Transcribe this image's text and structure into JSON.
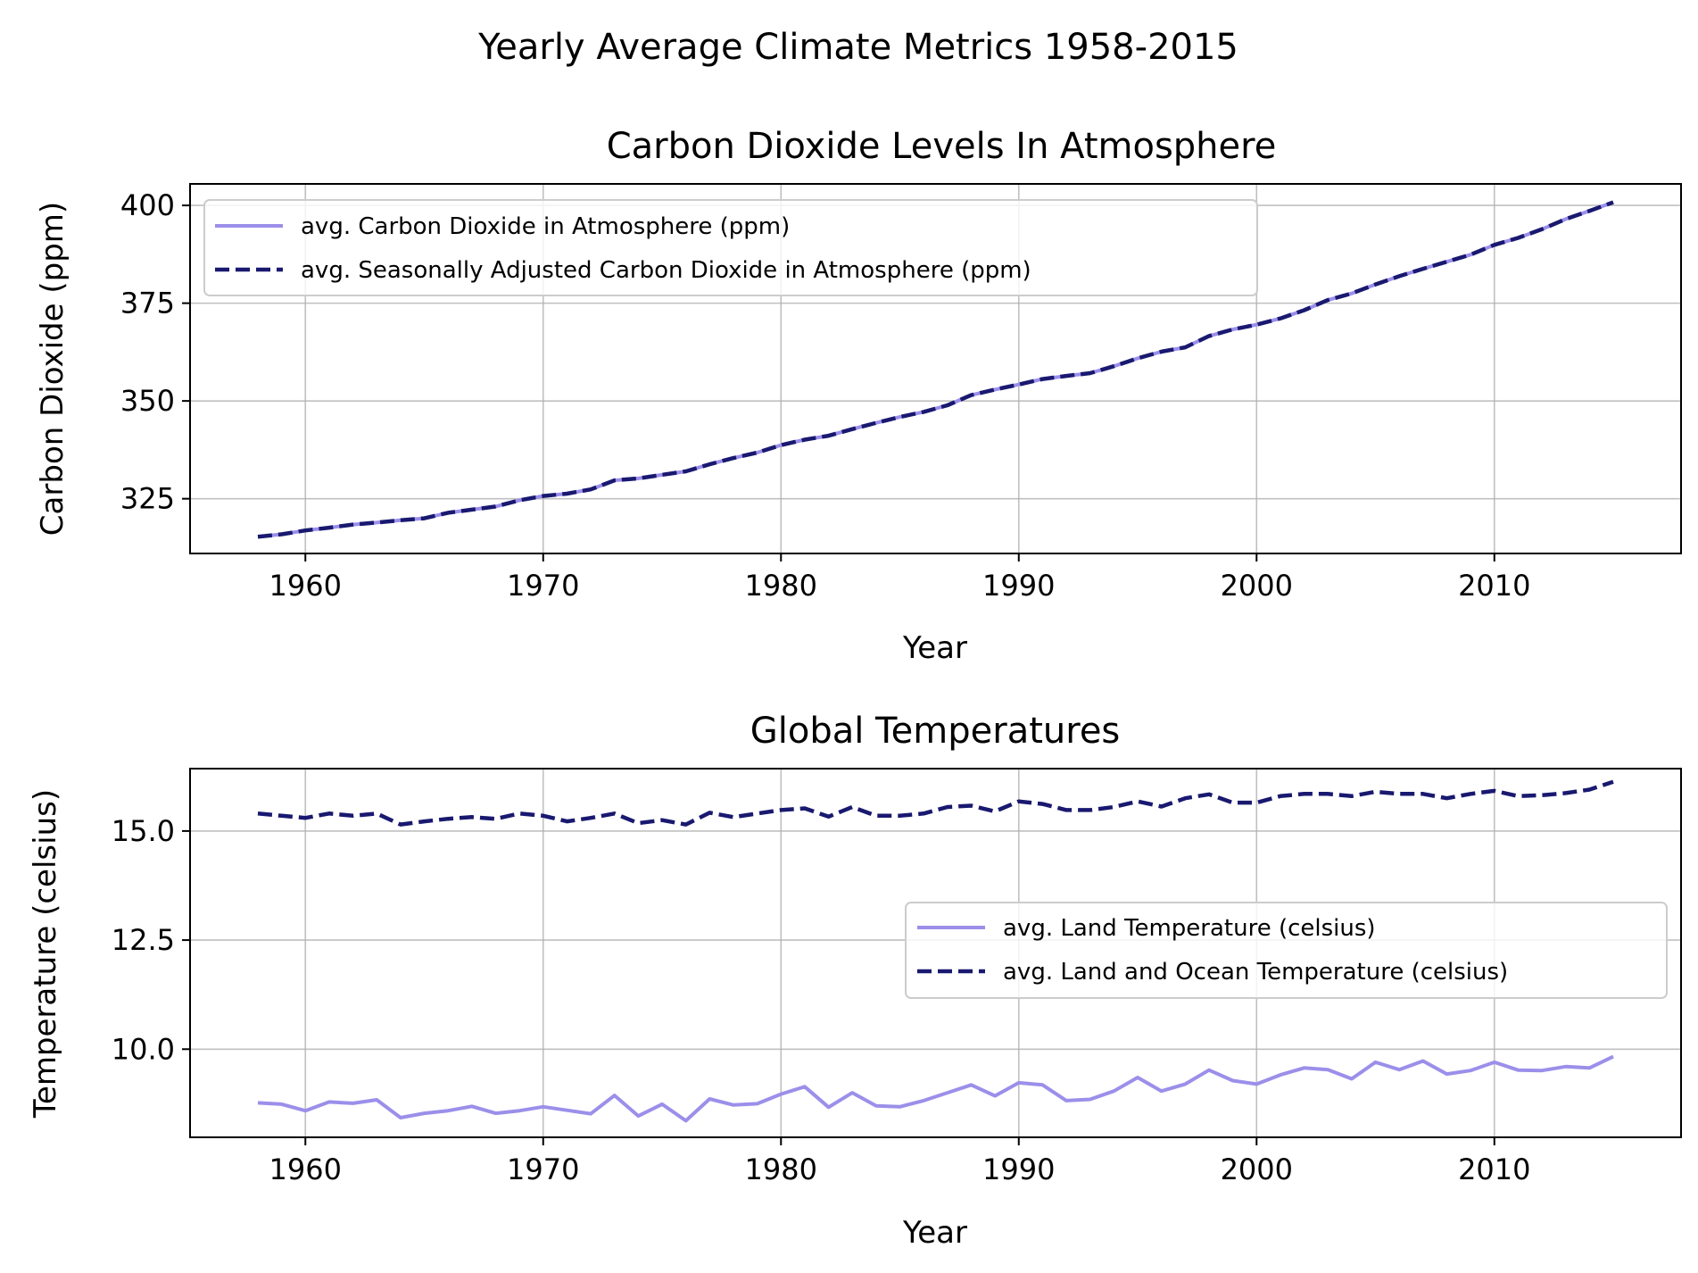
{
  "figure": {
    "suptitle": "Yearly Average Climate Metrics 1958-2015"
  },
  "colors": {
    "light": "#9b8fea",
    "dark": "#191970"
  },
  "chart_data": [
    {
      "type": "line",
      "title": "Carbon Dioxide Levels In Atmosphere",
      "xlabel": "Year",
      "ylabel": "Carbon Dioxide (ppm)",
      "xlim": [
        1955.15,
        2017.85
      ],
      "ylim": [
        311,
        405.5
      ],
      "xticks": [
        1960,
        1970,
        1980,
        1990,
        2000,
        2010
      ],
      "yticks": [
        325,
        350,
        375,
        400
      ],
      "ytick_labels": [
        "325",
        "350",
        "375",
        "400"
      ],
      "grid": true,
      "legend_position": "upper left",
      "x": [
        1958,
        1959,
        1960,
        1961,
        1962,
        1963,
        1964,
        1965,
        1966,
        1967,
        1968,
        1969,
        1970,
        1971,
        1972,
        1973,
        1974,
        1975,
        1976,
        1977,
        1978,
        1979,
        1980,
        1981,
        1982,
        1983,
        1984,
        1985,
        1986,
        1987,
        1988,
        1989,
        1990,
        1991,
        1992,
        1993,
        1994,
        1995,
        1996,
        1997,
        1998,
        1999,
        2000,
        2001,
        2002,
        2003,
        2004,
        2005,
        2006,
        2007,
        2008,
        2009,
        2010,
        2011,
        2012,
        2013,
        2014,
        2015
      ],
      "series": [
        {
          "name": "avg. Carbon Dioxide in Atmosphere (ppm)",
          "style": "solid",
          "color": "#9b8fea",
          "values": [
            315.3,
            315.9,
            316.9,
            317.6,
            318.4,
            318.9,
            319.5,
            320.0,
            321.4,
            322.2,
            323.0,
            324.6,
            325.7,
            326.3,
            327.4,
            329.7,
            330.2,
            331.1,
            332.0,
            333.8,
            335.4,
            336.8,
            338.7,
            340.1,
            341.1,
            342.8,
            344.4,
            345.9,
            347.2,
            348.9,
            351.5,
            352.9,
            354.2,
            355.6,
            356.4,
            357.1,
            358.9,
            360.9,
            362.6,
            363.7,
            366.6,
            368.3,
            369.5,
            371.1,
            373.2,
            375.8,
            377.5,
            379.8,
            381.9,
            383.8,
            385.6,
            387.4,
            389.9,
            391.7,
            393.9,
            396.5,
            398.6,
            400.8
          ]
        },
        {
          "name": "avg. Seasonally Adjusted Carbon Dioxide in Atmosphere (ppm)",
          "style": "dashed",
          "color": "#191970",
          "values": [
            315.3,
            315.9,
            316.9,
            317.6,
            318.4,
            318.9,
            319.5,
            320.0,
            321.4,
            322.2,
            323.0,
            324.6,
            325.7,
            326.3,
            327.4,
            329.7,
            330.2,
            331.1,
            332.0,
            333.8,
            335.4,
            336.8,
            338.7,
            340.1,
            341.1,
            342.8,
            344.4,
            345.9,
            347.2,
            348.9,
            351.5,
            352.9,
            354.2,
            355.6,
            356.4,
            357.1,
            358.9,
            360.9,
            362.6,
            363.7,
            366.6,
            368.3,
            369.5,
            371.1,
            373.2,
            375.8,
            377.5,
            379.8,
            381.9,
            383.8,
            385.6,
            387.4,
            389.9,
            391.7,
            393.9,
            396.5,
            398.6,
            400.8
          ]
        }
      ]
    },
    {
      "type": "line",
      "title": "Global Temperatures",
      "xlabel": "Year",
      "ylabel": "Temperature (celsius)",
      "xlim": [
        1955.15,
        2017.85
      ],
      "ylim": [
        7.98,
        16.43
      ],
      "xticks": [
        1960,
        1970,
        1980,
        1990,
        2000,
        2010
      ],
      "yticks": [
        10.0,
        12.5,
        15.0
      ],
      "ytick_labels": [
        "10.0",
        "12.5",
        "15.0"
      ],
      "grid": true,
      "legend_position": "center right",
      "x": [
        1958,
        1959,
        1960,
        1961,
        1962,
        1963,
        1964,
        1965,
        1966,
        1967,
        1968,
        1969,
        1970,
        1971,
        1972,
        1973,
        1974,
        1975,
        1976,
        1977,
        1978,
        1979,
        1980,
        1981,
        1982,
        1983,
        1984,
        1985,
        1986,
        1987,
        1988,
        1989,
        1990,
        1991,
        1992,
        1993,
        1994,
        1995,
        1996,
        1997,
        1998,
        1999,
        2000,
        2001,
        2002,
        2003,
        2004,
        2005,
        2006,
        2007,
        2008,
        2009,
        2010,
        2011,
        2012,
        2013,
        2014,
        2015
      ],
      "series": [
        {
          "name": "avg. Land Temperature (celsius)",
          "style": "solid",
          "color": "#9b8fea",
          "values": [
            8.77,
            8.74,
            8.59,
            8.79,
            8.76,
            8.84,
            8.43,
            8.53,
            8.59,
            8.69,
            8.53,
            8.59,
            8.68,
            8.6,
            8.52,
            8.94,
            8.47,
            8.74,
            8.36,
            8.86,
            8.72,
            8.75,
            8.97,
            9.14,
            8.67,
            9.0,
            8.7,
            8.68,
            8.82,
            9.0,
            9.18,
            8.93,
            9.23,
            9.18,
            8.82,
            8.85,
            9.04,
            9.35,
            9.04,
            9.2,
            9.52,
            9.28,
            9.2,
            9.41,
            9.57,
            9.53,
            9.32,
            9.7,
            9.53,
            9.73,
            9.43,
            9.51,
            9.7,
            9.52,
            9.51,
            9.6,
            9.57,
            9.83
          ]
        },
        {
          "name": "avg. Land and Ocean Temperature (celsius)",
          "style": "dashed",
          "color": "#191970",
          "values": [
            15.4,
            15.35,
            15.3,
            15.4,
            15.35,
            15.4,
            15.15,
            15.22,
            15.28,
            15.32,
            15.28,
            15.4,
            15.35,
            15.22,
            15.3,
            15.4,
            15.18,
            15.25,
            15.15,
            15.42,
            15.32,
            15.4,
            15.48,
            15.52,
            15.33,
            15.55,
            15.35,
            15.35,
            15.4,
            15.55,
            15.58,
            15.45,
            15.68,
            15.62,
            15.48,
            15.48,
            15.55,
            15.68,
            15.56,
            15.75,
            15.84,
            15.65,
            15.65,
            15.8,
            15.85,
            15.85,
            15.8,
            15.9,
            15.85,
            15.85,
            15.75,
            15.85,
            15.92,
            15.8,
            15.82,
            15.87,
            15.95,
            16.13
          ]
        }
      ]
    }
  ]
}
